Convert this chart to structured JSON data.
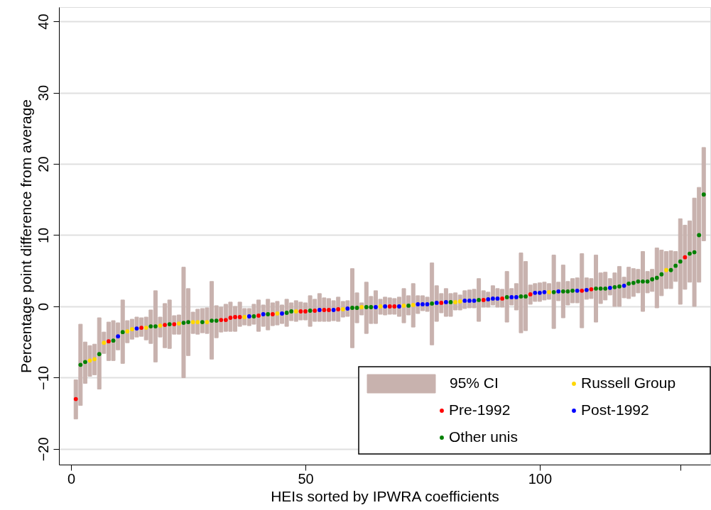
{
  "chart_data": {
    "type": "scatter",
    "xlabel": "HEIs sorted by IPWRA coefficients",
    "ylabel": "Percentage point difference from average",
    "xlim": [
      -2.6,
      136.4
    ],
    "ylim": [
      -22.2,
      42
    ],
    "xticks": [
      0,
      50,
      100,
      {
        "value": 130,
        "label": null
      }
    ],
    "yticks": [
      -20,
      -10,
      0,
      10,
      20,
      30,
      40
    ],
    "grid": "y",
    "legend": "bottom right",
    "marker": "circle",
    "series": [
      {
        "name": "95% CI",
        "type": "bar",
        "color": "#c8b2ae",
        "x": [
          1,
          2,
          3,
          4,
          5,
          6,
          7,
          8,
          9,
          10,
          11,
          12,
          13,
          14,
          15,
          16,
          17,
          18,
          19,
          20,
          21,
          22,
          23,
          24,
          25,
          26,
          27,
          28,
          29,
          30,
          31,
          32,
          33,
          34,
          35,
          36,
          37,
          38,
          39,
          40,
          41,
          42,
          43,
          44,
          45,
          46,
          47,
          48,
          49,
          50,
          51,
          52,
          53,
          54,
          55,
          56,
          57,
          58,
          59,
          60,
          61,
          62,
          63,
          64,
          65,
          66,
          67,
          68,
          69,
          70,
          71,
          72,
          73,
          74,
          75,
          76,
          77,
          78,
          79,
          80,
          81,
          82,
          83,
          84,
          85,
          86,
          87,
          88,
          89,
          90,
          91,
          92,
          93,
          94,
          95,
          96,
          97,
          98,
          99,
          100,
          101,
          102,
          103,
          104,
          105,
          106,
          107,
          108,
          109,
          110,
          111,
          112,
          113,
          114,
          115,
          116,
          117,
          118,
          119,
          120,
          121,
          122,
          123,
          124,
          125,
          126,
          127,
          128,
          129,
          130,
          131,
          132,
          133,
          134,
          135
        ],
        "base": [
          -15.8,
          -13.9,
          -10.8,
          -9.8,
          -9.6,
          -11.6,
          -6.6,
          -7.6,
          -7.6,
          -6.1,
          -8.0,
          -5.1,
          -4.6,
          -4.3,
          -4.2,
          -4.7,
          -5.2,
          -7.8,
          -4.3,
          -5.8,
          -5.9,
          -3.9,
          -3.9,
          -10.0,
          -6.9,
          -3.8,
          -3.9,
          -3.7,
          -3.8,
          -7.4,
          -4.4,
          -3.6,
          -3.5,
          -3.5,
          -3.5,
          -2.8,
          -2.6,
          -2.7,
          -2.5,
          -3.5,
          -2.8,
          -3.3,
          -2.7,
          -2.6,
          -2.4,
          -2.8,
          -2.0,
          -2.1,
          -1.9,
          -1.9,
          -2.8,
          -2.1,
          -2.1,
          -2.1,
          -2.1,
          -2.0,
          -2.1,
          -1.5,
          -1.4,
          -5.8,
          -2.3,
          -1.2,
          -3.8,
          -2.4,
          -2.4,
          -1.1,
          -1.2,
          -1.1,
          -1.1,
          -1.4,
          -2.3,
          -1.2,
          -2.9,
          -1.0,
          -0.6,
          -0.7,
          -5.4,
          -2.1,
          -0.9,
          -1.4,
          -1.4,
          -0.5,
          -0.5,
          -0.3,
          -0.2,
          -0.2,
          -2.1,
          -0.1,
          -0.1,
          0.2,
          -0.1,
          -0.1,
          -2.2,
          0.2,
          -0.5,
          -3.7,
          -3.4,
          0.3,
          0.7,
          0.7,
          0.9,
          1.0,
          -3.1,
          0.8,
          -1.6,
          0.2,
          0.5,
          0.5,
          -3.0,
          1.0,
          1.1,
          -2.2,
          0.4,
          0.9,
          1.6,
          0.0,
          0.0,
          1.2,
          1.1,
          1.4,
          1.9,
          -0.7,
          1.9,
          2.1,
          -0.2,
          1.5,
          2.5,
          2.5,
          3.5,
          0.3,
          2.4,
          3.4,
          0.0,
          3.4,
          9.2
        ],
        "values": [
          5.5,
          11.4,
          5.8,
          4.3,
          4.3,
          10.0,
          3.0,
          5.4,
          5.6,
          3.8,
          8.9,
          3.1,
          2.8,
          2.8,
          2.6,
          3.2,
          4.7,
          10.0,
          2.8,
          6.2,
          6.8,
          2.6,
          2.7,
          15.5,
          9.4,
          3.0,
          3.5,
          3.4,
          3.6,
          10.9,
          4.5,
          3.5,
          3.8,
          4.1,
          3.5,
          3.4,
          2.3,
          2.4,
          2.8,
          4.4,
          3.0,
          4.3,
          3.2,
          3.3,
          2.6,
          3.8,
          2.5,
          2.9,
          2.5,
          2.4,
          4.3,
          3.1,
          3.9,
          3.3,
          3.2,
          2.8,
          3.4,
          2.2,
          2.2,
          11.1,
          4.2,
          1.7,
          7.2,
          3.8,
          4.6,
          2.1,
          2.5,
          2.3,
          2.2,
          2.7,
          4.8,
          2.7,
          6.1,
          2.5,
          2.1,
          2.0,
          11.5,
          5.0,
          2.7,
          3.9,
          3.2,
          2.4,
          2.1,
          2.5,
          2.5,
          2.6,
          6.0,
          2.3,
          2.1,
          2.7,
          2.6,
          2.5,
          7.1,
          2.3,
          3.7,
          11.2,
          9.7,
          2.7,
          2.5,
          2.6,
          2.5,
          2.2,
          10.3,
          2.6,
          7.4,
          3.3,
          3.4,
          3.5,
          10.4,
          3.0,
          2.8,
          9.4,
          4.3,
          3.9,
          2.3,
          4.7,
          5.6,
          2.9,
          4.4,
          3.9,
          3.3,
          8.4,
          3.0,
          3.1,
          8.4,
          6.4,
          5.2,
          5.3,
          4.2,
          12.0,
          9.0,
          8.6,
          15.2,
          13.3,
          13.1
        ]
      },
      {
        "name": "Pre-1992",
        "color": "#ff0000",
        "x": [
          1,
          8,
          15,
          20,
          22,
          32,
          33,
          34,
          35,
          36,
          40,
          43,
          49,
          50,
          52,
          54,
          55,
          57,
          68,
          69,
          79,
          88,
          92,
          98,
          109,
          111,
          131
        ],
        "values": [
          -13.0,
          -4.9,
          -3.0,
          -2.6,
          -2.5,
          -1.9,
          -1.9,
          -1.6,
          -1.5,
          -1.5,
          -1.3,
          -1.1,
          -0.7,
          -0.7,
          -0.6,
          -0.5,
          -0.5,
          -0.4,
          0.0,
          0.0,
          0.5,
          0.9,
          1.1,
          1.7,
          2.2,
          2.4,
          6.9
        ]
      },
      {
        "name": "Other unis",
        "color": "#008000",
        "x": [
          2,
          3,
          6,
          9,
          11,
          17,
          18,
          21,
          24,
          25,
          28,
          30,
          31,
          39,
          42,
          46,
          47,
          51,
          60,
          61,
          63,
          64,
          72,
          77,
          81,
          87,
          93,
          96,
          97,
          103,
          105,
          106,
          107,
          112,
          113,
          114,
          116,
          117,
          119,
          120,
          121,
          122,
          123,
          124,
          125,
          126,
          128,
          129,
          130,
          132,
          133,
          134,
          135
        ],
        "values": [
          -8.2,
          -7.8,
          -6.7,
          -4.8,
          -3.6,
          -2.8,
          -2.8,
          -2.5,
          -2.3,
          -2.2,
          -2.2,
          -2.0,
          -2.0,
          -1.4,
          -1.1,
          -0.9,
          -0.7,
          -0.6,
          -0.2,
          -0.2,
          -0.1,
          -0.1,
          0.1,
          0.4,
          0.6,
          0.9,
          1.3,
          1.4,
          1.4,
          2.0,
          2.1,
          2.1,
          2.2,
          2.5,
          2.5,
          2.5,
          2.7,
          2.8,
          3.2,
          3.3,
          3.5,
          3.5,
          3.5,
          3.8,
          4.0,
          4.5,
          5.1,
          5.7,
          6.3,
          7.4,
          7.6,
          10.0,
          15.7
        ]
      },
      {
        "name": "Russell Group",
        "color": "#ffd700",
        "x": [
          4,
          5,
          7,
          12,
          13,
          16,
          19,
          23,
          26,
          27,
          29,
          37,
          44,
          48,
          58,
          62,
          66,
          71,
          73,
          82,
          83,
          102,
          127
        ],
        "values": [
          -7.6,
          -7.4,
          -5.1,
          -3.5,
          -3.2,
          -3.0,
          -2.7,
          -2.4,
          -2.2,
          -2.2,
          -2.2,
          -1.5,
          -1.0,
          -0.7,
          -0.4,
          -0.1,
          0.0,
          0.1,
          0.2,
          0.6,
          0.7,
          2.0,
          5.1
        ]
      },
      {
        "name": "Post-1992",
        "color": "#0000ff",
        "x": [
          10,
          14,
          38,
          41,
          45,
          53,
          56,
          59,
          65,
          67,
          70,
          74,
          75,
          76,
          78,
          80,
          84,
          85,
          86,
          89,
          90,
          91,
          94,
          95,
          99,
          100,
          101,
          104,
          108,
          110,
          115,
          118
        ],
        "values": [
          -4.2,
          -3.1,
          -1.4,
          -1.1,
          -1.0,
          -0.5,
          -0.5,
          -0.3,
          -0.1,
          0.0,
          0.0,
          0.3,
          0.3,
          0.3,
          0.5,
          0.6,
          0.8,
          0.8,
          0.8,
          1.0,
          1.1,
          1.1,
          1.3,
          1.3,
          1.9,
          1.9,
          2.0,
          2.1,
          2.2,
          2.3,
          2.6,
          2.9
        ]
      }
    ]
  }
}
